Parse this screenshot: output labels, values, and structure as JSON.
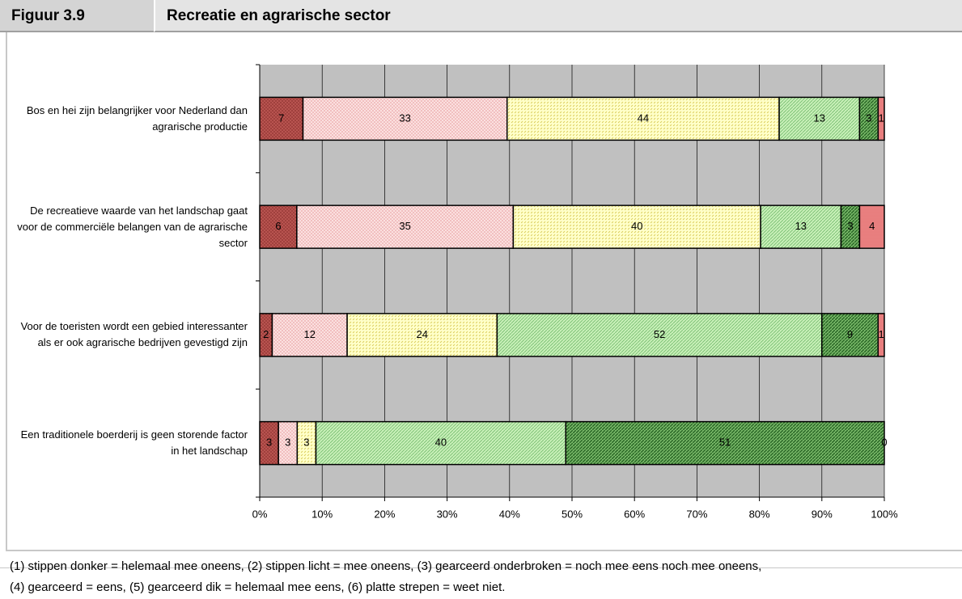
{
  "header": {
    "figure": "Figuur 3.9",
    "title": "Recreatie en agrarische sector"
  },
  "chart_data": {
    "type": "bar",
    "orientation": "horizontal",
    "stacked": "percent",
    "categories": [
      "Bos en hei zijn belangrijker voor Nederland dan agrarische productie",
      "De recreatieve waarde van het landschap gaat voor de commerciële belangen van de agrarische sector",
      "Voor de toeristen wordt een gebied interessanter als er ook agrarische bedrijven gevestigd zijn",
      "Een traditionele boerderij is geen storende factor in het landschap"
    ],
    "series": [
      {
        "color": "#b85450",
        "pattern": "dots-dark",
        "values": [
          7,
          6,
          2,
          3
        ]
      },
      {
        "color": "#fbe0e0",
        "pattern": "dots-light",
        "values": [
          33,
          35,
          12,
          3
        ]
      },
      {
        "color": "#ffffc8",
        "pattern": "dashed-hatch",
        "values": [
          44,
          40,
          24,
          3
        ]
      },
      {
        "color": "#c8f0b8",
        "pattern": "hatch",
        "values": [
          13,
          13,
          52,
          40
        ]
      },
      {
        "color": "#78b868",
        "pattern": "hatch-thick",
        "values": [
          3,
          3,
          9,
          51
        ]
      },
      {
        "color": "#f4a0a0",
        "pattern": "stripes",
        "values": [
          1,
          4,
          1,
          0
        ]
      }
    ],
    "xlim": [
      0,
      100
    ],
    "xticks": [
      {
        "value": 0,
        "label": "0%"
      },
      {
        "value": 10,
        "label": "10%"
      },
      {
        "value": 20,
        "label": "20%"
      },
      {
        "value": 30,
        "label": "30%"
      },
      {
        "value": 40,
        "label": "40%"
      },
      {
        "value": 50,
        "label": "50%"
      },
      {
        "value": 60,
        "label": "60%"
      },
      {
        "value": 70,
        "label": "70%"
      },
      {
        "value": 80,
        "label": "80%"
      },
      {
        "value": 90,
        "label": "90%"
      },
      {
        "value": 100,
        "label": "100%"
      }
    ],
    "grid": true
  },
  "footnote": {
    "lines": [
      "(1) stippen donker = helemaal mee oneens, (2) stippen licht = mee oneens, (3) gearceerd onderbroken = noch mee eens noch mee oneens,",
      "(4) gearceerd = eens, (5) gearceerd dik = helemaal mee eens, (6) platte strepen = weet niet."
    ]
  }
}
